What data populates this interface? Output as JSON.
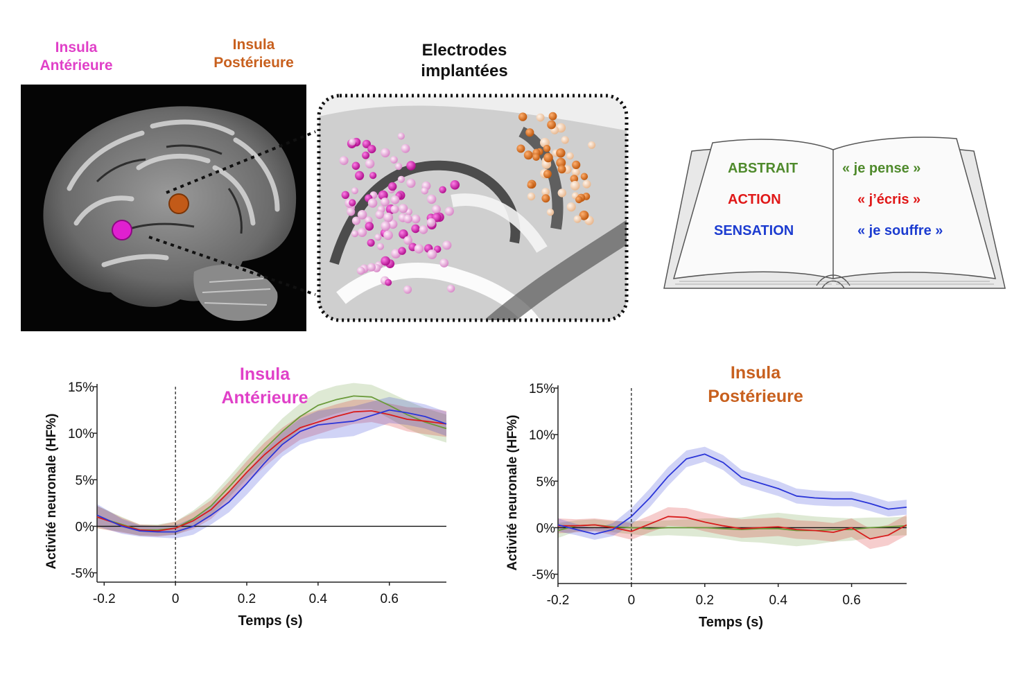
{
  "labels": {
    "anterior_title": [
      "Insula",
      "Antérieure"
    ],
    "posterior_title": [
      "Insula",
      "Postérieure"
    ],
    "electrodes_title": [
      "Electrodes",
      "implantées"
    ]
  },
  "book": {
    "rows": [
      {
        "category": "ABSTRAIT",
        "example": "« je pense »",
        "color": "#4f8a2c"
      },
      {
        "category": "ACTION",
        "example": "« j’écris »",
        "color": "#e01818"
      },
      {
        "category": "SENSATION",
        "example": "« je souffre »",
        "color": "#1c3cd0"
      }
    ]
  },
  "colors": {
    "anterior": "#e040c8",
    "posterior": "#c8601e",
    "abstrait": "#6a9a3a",
    "action": "#d81c1c",
    "sensation": "#2a35d8"
  },
  "chart_data": [
    {
      "type": "line",
      "title": [
        "Insula",
        "Antérieure"
      ],
      "xlabel": "Temps (s)",
      "ylabel": "Activité neuronale (HF%)",
      "xlim": [
        -0.22,
        0.76
      ],
      "ylim": [
        -6,
        15
      ],
      "xticks": [
        -0.2,
        0,
        0.2,
        0.4,
        0.6
      ],
      "xtick_labels": [
        "-0.2",
        "0",
        "0.2",
        "0.4",
        "0.6"
      ],
      "yticks": [
        -5,
        0,
        5,
        10,
        15
      ],
      "ytick_labels": [
        "-5%",
        "0%",
        "5%",
        "10%",
        "15%"
      ],
      "x": [
        -0.22,
        -0.15,
        -0.1,
        -0.05,
        0,
        0.05,
        0.1,
        0.15,
        0.2,
        0.25,
        0.3,
        0.35,
        0.4,
        0.45,
        0.5,
        0.55,
        0.6,
        0.65,
        0.7,
        0.76
      ],
      "series": [
        {
          "name": "ABSTRAIT",
          "values": [
            1.0,
            0.2,
            -0.4,
            -0.4,
            -0.2,
            0.8,
            2.2,
            4.2,
            6.3,
            8.3,
            10.2,
            11.8,
            13.0,
            13.6,
            14.0,
            13.9,
            13.0,
            12.0,
            11.2,
            10.5
          ],
          "band": [
            1.2,
            0.8,
            0.6,
            0.6,
            0.7,
            0.9,
            1.0,
            1.1,
            1.2,
            1.3,
            1.4,
            1.4,
            1.5,
            1.5,
            1.4,
            1.3,
            1.4,
            1.5,
            1.5,
            1.5
          ]
        },
        {
          "name": "ACTION",
          "values": [
            1.0,
            0.1,
            -0.4,
            -0.5,
            -0.2,
            0.6,
            1.8,
            3.7,
            5.8,
            7.7,
            9.3,
            10.6,
            11.2,
            11.8,
            12.3,
            12.4,
            12.0,
            11.5,
            11.3,
            11.0
          ],
          "band": [
            1.2,
            0.8,
            0.6,
            0.6,
            0.7,
            0.9,
            1.0,
            1.1,
            1.2,
            1.3,
            1.3,
            1.3,
            1.3,
            1.3,
            1.3,
            1.2,
            1.2,
            1.3,
            1.4,
            1.4
          ]
        },
        {
          "name": "SENSATION",
          "values": [
            1.2,
            0.0,
            -0.5,
            -0.6,
            -0.6,
            0.0,
            1.2,
            2.6,
            4.6,
            6.8,
            8.8,
            10.2,
            10.9,
            11.1,
            11.3,
            11.9,
            12.5,
            12.2,
            11.8,
            11.0
          ],
          "band": [
            1.2,
            0.8,
            0.6,
            0.6,
            0.7,
            0.9,
            1.0,
            1.1,
            1.2,
            1.3,
            1.3,
            1.4,
            1.5,
            1.6,
            1.6,
            1.5,
            1.4,
            1.3,
            1.3,
            1.3
          ]
        }
      ]
    },
    {
      "type": "line",
      "title": [
        "Insula",
        "Postérieure"
      ],
      "xlabel": "Temps (s)",
      "ylabel": "Activité neuronale (HF%)",
      "xlim": [
        -0.2,
        0.75
      ],
      "ylim": [
        -6,
        15
      ],
      "xticks": [
        -0.2,
        0,
        0.2,
        0.4,
        0.6
      ],
      "xtick_labels": [
        "-0.2",
        "0",
        "0.2",
        "0.4",
        "0.6"
      ],
      "yticks": [
        -5,
        0,
        5,
        10,
        15
      ],
      "ytick_labels": [
        "-5%",
        "0%",
        "5%",
        "10%",
        "15%"
      ],
      "x": [
        -0.2,
        -0.15,
        -0.1,
        -0.05,
        0,
        0.05,
        0.1,
        0.15,
        0.2,
        0.25,
        0.3,
        0.35,
        0.4,
        0.45,
        0.5,
        0.55,
        0.6,
        0.65,
        0.7,
        0.75
      ],
      "series": [
        {
          "name": "ABSTRAIT",
          "values": [
            -0.3,
            0.2,
            0.3,
            0.1,
            0.0,
            -0.1,
            0.0,
            0.0,
            0.0,
            -0.1,
            -0.2,
            -0.1,
            -0.1,
            -0.3,
            -0.3,
            -0.2,
            -0.2,
            0.0,
            0.1,
            0.2
          ],
          "band": [
            0.8,
            0.6,
            0.6,
            0.6,
            0.7,
            0.8,
            0.8,
            0.9,
            1.0,
            1.1,
            1.3,
            1.5,
            1.7,
            1.7,
            1.5,
            1.3,
            1.2,
            1.1,
            1.0,
            1.0
          ]
        },
        {
          "name": "ACTION",
          "values": [
            0.2,
            0.2,
            0.3,
            0.0,
            -0.4,
            0.4,
            1.2,
            1.1,
            0.6,
            0.2,
            -0.1,
            0.0,
            0.1,
            -0.2,
            -0.3,
            -0.5,
            0.0,
            -1.2,
            -0.8,
            0.3
          ],
          "band": [
            0.8,
            0.7,
            0.7,
            0.8,
            0.9,
            0.9,
            1.0,
            1.0,
            1.0,
            1.0,
            1.0,
            1.0,
            1.0,
            1.0,
            1.0,
            1.0,
            1.0,
            1.1,
            1.1,
            1.1
          ]
        },
        {
          "name": "SENSATION",
          "values": [
            0.3,
            -0.2,
            -0.7,
            -0.2,
            1.2,
            3.2,
            5.5,
            7.4,
            7.9,
            7.0,
            5.4,
            4.8,
            4.2,
            3.4,
            3.2,
            3.1,
            3.1,
            2.6,
            2.0,
            2.2
          ],
          "band": [
            0.7,
            0.6,
            0.6,
            0.7,
            0.9,
            1.0,
            1.0,
            0.9,
            0.8,
            0.8,
            0.8,
            0.8,
            0.8,
            0.8,
            0.8,
            0.8,
            0.8,
            0.8,
            0.8,
            0.8
          ]
        }
      ]
    }
  ]
}
